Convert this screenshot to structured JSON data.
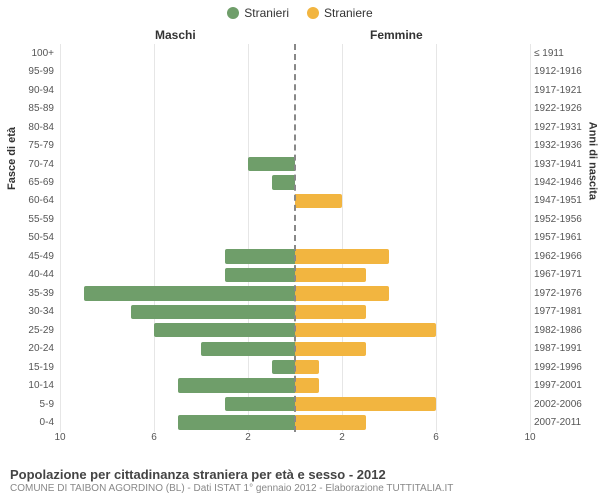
{
  "legend": {
    "male": {
      "label": "Stranieri",
      "color": "#6f9e6a"
    },
    "female": {
      "label": "Straniere",
      "color": "#f2b540"
    }
  },
  "header": {
    "maschi": "Maschi",
    "femmine": "Femmine"
  },
  "axis_titles": {
    "left": "Fasce di età",
    "right": "Anni di nascita"
  },
  "chart": {
    "type": "population_pyramid",
    "xmax": 10,
    "xticks": [
      10,
      6,
      2,
      2,
      6,
      10
    ],
    "grid_color": "#e6e6e6",
    "center_line_color": "#888",
    "background_color": "#ffffff",
    "male_color": "#6f9e6a",
    "female_color": "#f2b540",
    "label_fontsize": 10,
    "rows": [
      {
        "age": "100+",
        "birth": "≤ 1911",
        "m": 0,
        "f": 0
      },
      {
        "age": "95-99",
        "birth": "1912-1916",
        "m": 0,
        "f": 0
      },
      {
        "age": "90-94",
        "birth": "1917-1921",
        "m": 0,
        "f": 0
      },
      {
        "age": "85-89",
        "birth": "1922-1926",
        "m": 0,
        "f": 0
      },
      {
        "age": "80-84",
        "birth": "1927-1931",
        "m": 0,
        "f": 0
      },
      {
        "age": "75-79",
        "birth": "1932-1936",
        "m": 0,
        "f": 0
      },
      {
        "age": "70-74",
        "birth": "1937-1941",
        "m": 2,
        "f": 0
      },
      {
        "age": "65-69",
        "birth": "1942-1946",
        "m": 1,
        "f": 0
      },
      {
        "age": "60-64",
        "birth": "1947-1951",
        "m": 0,
        "f": 2
      },
      {
        "age": "55-59",
        "birth": "1952-1956",
        "m": 0,
        "f": 0
      },
      {
        "age": "50-54",
        "birth": "1957-1961",
        "m": 0,
        "f": 0
      },
      {
        "age": "45-49",
        "birth": "1962-1966",
        "m": 3,
        "f": 4
      },
      {
        "age": "40-44",
        "birth": "1967-1971",
        "m": 3,
        "f": 3
      },
      {
        "age": "35-39",
        "birth": "1972-1976",
        "m": 9,
        "f": 4
      },
      {
        "age": "30-34",
        "birth": "1977-1981",
        "m": 7,
        "f": 3
      },
      {
        "age": "25-29",
        "birth": "1982-1986",
        "m": 6,
        "f": 6
      },
      {
        "age": "20-24",
        "birth": "1987-1991",
        "m": 4,
        "f": 3
      },
      {
        "age": "15-19",
        "birth": "1992-1996",
        "m": 1,
        "f": 1
      },
      {
        "age": "10-14",
        "birth": "1997-2001",
        "m": 5,
        "f": 1
      },
      {
        "age": "5-9",
        "birth": "2002-2006",
        "m": 3,
        "f": 6
      },
      {
        "age": "0-4",
        "birth": "2007-2011",
        "m": 5,
        "f": 3
      }
    ]
  },
  "x_axis_labels": {
    "l10": "10",
    "l6": "6",
    "l2": "2",
    "r2": "2",
    "r6": "6",
    "r10": "10"
  },
  "footer": {
    "title": "Popolazione per cittadinanza straniera per età e sesso - 2012",
    "sub": "COMUNE DI TAIBON AGORDINO (BL) - Dati ISTAT 1° gennaio 2012 - Elaborazione TUTTITALIA.IT"
  }
}
